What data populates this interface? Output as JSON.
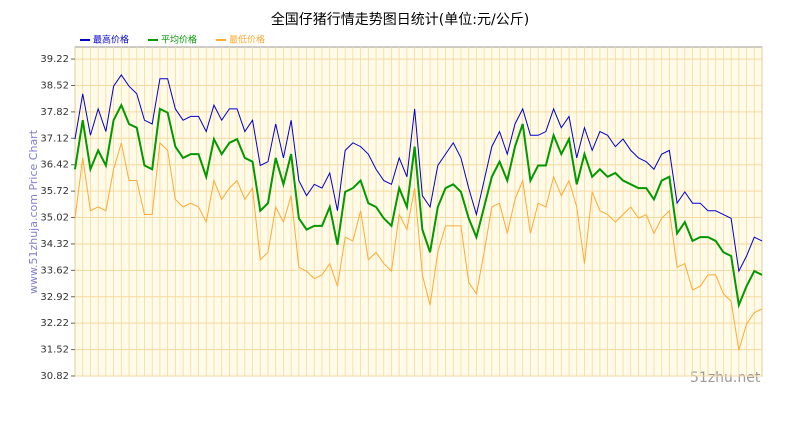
{
  "chart_data": {
    "type": "line",
    "title": "全国仔猪行情走势图日统计(单位:元/公斤)",
    "y_label": "www.51zhuja.com Price Chart",
    "watermark": "51zhu.net",
    "categories": [
      null,
      null,
      null,
      null,
      null,
      null,
      null,
      null,
      null,
      null,
      null,
      null,
      null,
      null,
      null,
      null,
      null,
      null,
      null,
      null,
      null,
      null,
      null,
      null,
      null,
      null,
      null,
      null,
      null,
      null,
      null,
      null,
      null,
      null,
      null,
      null,
      null,
      null,
      null,
      null,
      null,
      null,
      null,
      null,
      null,
      null,
      null,
      null,
      null,
      null,
      null,
      null,
      null,
      null,
      null,
      null,
      null,
      null,
      null,
      null,
      null,
      null,
      null,
      null,
      null,
      null,
      null,
      null,
      null,
      null,
      null,
      null,
      null,
      null,
      null,
      null,
      null,
      null,
      null,
      null,
      null,
      null,
      null,
      null,
      null,
      null,
      null,
      null,
      null,
      null
    ],
    "series": [
      {
        "name": "最高价格",
        "color": "#0000cc",
        "values": [
          37.1,
          38.3,
          37.2,
          37.9,
          37.3,
          38.5,
          38.8,
          38.5,
          38.3,
          37.6,
          37.5,
          38.7,
          38.7,
          37.9,
          37.6,
          37.7,
          37.7,
          37.3,
          38.0,
          37.6,
          37.9,
          37.9,
          37.3,
          37.6,
          36.4,
          36.5,
          37.5,
          36.6,
          37.6,
          36.0,
          35.6,
          35.9,
          35.8,
          36.2,
          35.2,
          36.8,
          37.0,
          36.9,
          36.7,
          36.3,
          36.0,
          35.9,
          36.6,
          36.1,
          37.9,
          35.6,
          35.3,
          36.4,
          36.7,
          37.0,
          36.6,
          35.8,
          35.1,
          36.0,
          36.9,
          37.3,
          36.7,
          37.5,
          37.9,
          37.2,
          37.2,
          37.3,
          37.9,
          37.4,
          37.7,
          36.6,
          37.4,
          36.8,
          37.3,
          37.2,
          36.9,
          37.1,
          36.8,
          36.6,
          36.5,
          36.3,
          36.7,
          36.8,
          35.4,
          35.7,
          35.4,
          35.4,
          35.2,
          35.2,
          35.1,
          35.0,
          33.6,
          34.0,
          34.5,
          34.4
        ]
      },
      {
        "name": "平均价格",
        "color": "#009900",
        "values": [
          36.3,
          37.6,
          36.3,
          36.8,
          36.4,
          37.6,
          38.0,
          37.5,
          37.4,
          36.4,
          36.3,
          37.9,
          37.8,
          36.9,
          36.6,
          36.7,
          36.7,
          36.1,
          37.1,
          36.7,
          37.0,
          37.1,
          36.6,
          36.5,
          35.2,
          35.4,
          36.6,
          35.9,
          36.7,
          35.0,
          34.7,
          34.8,
          34.8,
          35.3,
          34.3,
          35.7,
          35.8,
          36.0,
          35.4,
          35.3,
          35.0,
          34.8,
          35.8,
          35.3,
          36.9,
          34.7,
          34.1,
          35.3,
          35.8,
          35.9,
          35.7,
          35.0,
          34.5,
          35.3,
          36.1,
          36.5,
          36.0,
          36.9,
          37.5,
          36.0,
          36.4,
          36.4,
          37.2,
          36.7,
          37.1,
          35.9,
          36.7,
          36.1,
          36.3,
          36.1,
          36.2,
          36.0,
          35.9,
          35.8,
          35.8,
          35.5,
          36.0,
          36.1,
          34.6,
          34.9,
          34.4,
          34.5,
          34.5,
          34.4,
          34.1,
          34.0,
          32.7,
          33.2,
          33.6,
          33.5
        ]
      },
      {
        "name": "最低价格",
        "color": "#ffaa33",
        "values": [
          35.0,
          36.6,
          35.2,
          35.3,
          35.2,
          36.3,
          37.0,
          36.0,
          36.0,
          35.1,
          35.1,
          37.0,
          36.8,
          35.5,
          35.3,
          35.4,
          35.3,
          34.9,
          36.0,
          35.5,
          35.8,
          36.0,
          35.5,
          35.8,
          33.9,
          34.1,
          35.3,
          34.9,
          35.6,
          33.7,
          33.6,
          33.4,
          33.5,
          33.8,
          33.2,
          34.5,
          34.4,
          35.2,
          33.9,
          34.1,
          33.8,
          33.6,
          35.1,
          34.7,
          35.8,
          33.5,
          32.7,
          34.1,
          34.8,
          34.8,
          34.8,
          33.3,
          33.0,
          34.1,
          35.3,
          35.4,
          34.6,
          35.5,
          36.0,
          34.6,
          35.4,
          35.3,
          36.1,
          35.6,
          36.0,
          35.3,
          33.8,
          35.7,
          35.2,
          35.1,
          34.9,
          35.1,
          35.3,
          35.0,
          35.1,
          34.6,
          35.0,
          35.2,
          33.7,
          33.8,
          33.1,
          33.2,
          33.5,
          33.5,
          33.0,
          32.8,
          31.5,
          32.2,
          32.5,
          32.6
        ]
      }
    ],
    "ylim": [
      30.82,
      39.54
    ],
    "yticks": [
      30.82,
      31.52,
      32.22,
      32.92,
      33.62,
      34.32,
      35.02,
      35.72,
      36.42,
      37.12,
      37.82,
      38.52,
      39.22
    ],
    "grid": true,
    "legend": "top-left"
  }
}
